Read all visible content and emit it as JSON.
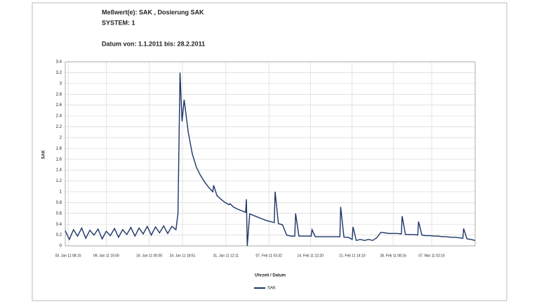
{
  "chart_data": {
    "type": "line",
    "title": "Meßwert(e): SAK , Dosierung SAK",
    "subtitle": "SYSTEM: 1",
    "date_range": "Datum von: 1.1.2011 bis: 28.2.2011",
    "y_label": "SAK",
    "x_label": "Uhrzeit / Datum",
    "grid": true,
    "x": [
      0,
      1,
      2,
      3,
      4,
      5,
      6,
      7,
      8,
      9,
      10,
      11,
      12,
      13,
      14,
      15,
      16,
      17,
      18,
      19,
      20,
      21,
      22,
      23,
      24,
      25,
      26,
      27,
      27.5,
      28,
      28.5,
      29,
      30,
      31,
      32,
      33,
      34,
      35,
      36,
      36.2,
      37,
      38,
      39,
      40,
      40.2,
      41,
      42,
      43,
      44,
      44.2,
      44.4,
      45,
      46,
      47,
      48,
      49,
      50,
      51,
      51.2,
      52,
      53,
      54,
      55,
      56,
      56.2,
      57,
      58,
      59,
      60,
      60.2,
      61,
      62,
      63,
      64,
      65,
      66,
      67,
      67.2,
      68,
      69,
      70,
      70.2,
      71,
      72,
      73,
      74,
      75,
      76,
      77,
      78,
      79,
      80,
      81,
      82,
      82.2,
      83,
      84,
      85,
      86,
      86.2,
      87,
      88,
      89,
      90,
      91,
      92,
      93,
      94,
      95,
      96,
      97,
      97.2,
      98,
      99,
      100
    ],
    "series": [
      {
        "name": "SAK",
        "color": "#1c3568",
        "values": [
          0.28,
          0.12,
          0.3,
          0.18,
          0.33,
          0.14,
          0.29,
          0.2,
          0.31,
          0.13,
          0.27,
          0.19,
          0.32,
          0.16,
          0.3,
          0.21,
          0.34,
          0.18,
          0.33,
          0.22,
          0.36,
          0.2,
          0.35,
          0.24,
          0.37,
          0.23,
          0.36,
          0.3,
          0.6,
          3.2,
          2.3,
          2.7,
          2.1,
          1.7,
          1.45,
          1.3,
          1.18,
          1.08,
          1.0,
          1.12,
          0.93,
          0.86,
          0.8,
          0.76,
          0.78,
          0.72,
          0.68,
          0.65,
          0.62,
          0.86,
          0,
          0.59,
          0.56,
          0.53,
          0.5,
          0.47,
          0.45,
          0.43,
          1.0,
          0.41,
          0.39,
          0.2,
          0.18,
          0.18,
          0.6,
          0.18,
          0.18,
          0.18,
          0.18,
          0.3,
          0.17,
          0.17,
          0.17,
          0.17,
          0.17,
          0.17,
          0.17,
          0.72,
          0.16,
          0.16,
          0.12,
          0.35,
          0.1,
          0.12,
          0.1,
          0.12,
          0.1,
          0.15,
          0.25,
          0.24,
          0.23,
          0.23,
          0.23,
          0.22,
          0.55,
          0.21,
          0.21,
          0.21,
          0.2,
          0.45,
          0.2,
          0.19,
          0.19,
          0.18,
          0.18,
          0.17,
          0.17,
          0.16,
          0.16,
          0.15,
          0.14,
          0.32,
          0.13,
          0.12,
          0.1
        ]
      }
    ],
    "xlim": [
      0,
      100
    ],
    "xticks": [
      {
        "value": 0.7,
        "label": "03. Jan 11 08:15"
      },
      {
        "value": 10,
        "label": "09. Jan 11 15:00"
      },
      {
        "value": 20.5,
        "label": "16. Jan 11 00:00"
      },
      {
        "value": 28.6,
        "label": "24. Jan 11 18:51"
      },
      {
        "value": 39.2,
        "label": "31. Jan 11 12:11"
      },
      {
        "value": 49.7,
        "label": "07. Feb 11 03:32"
      },
      {
        "value": 59.8,
        "label": "14. Feb 11 22:20"
      },
      {
        "value": 70,
        "label": "21. Feb 11 14:10"
      },
      {
        "value": 80,
        "label": "28. Feb 11 08:16"
      },
      {
        "value": 89.4,
        "label": "07. Mar 11 02:16"
      }
    ],
    "ylim": [
      0,
      3.4
    ],
    "yticks": [
      0,
      0.2,
      0.4,
      0.6,
      0.8,
      1,
      1.2,
      1.4,
      1.6,
      1.8,
      2,
      2.2,
      2.4,
      2.6,
      2.8,
      3,
      3.2,
      3.4
    ]
  }
}
